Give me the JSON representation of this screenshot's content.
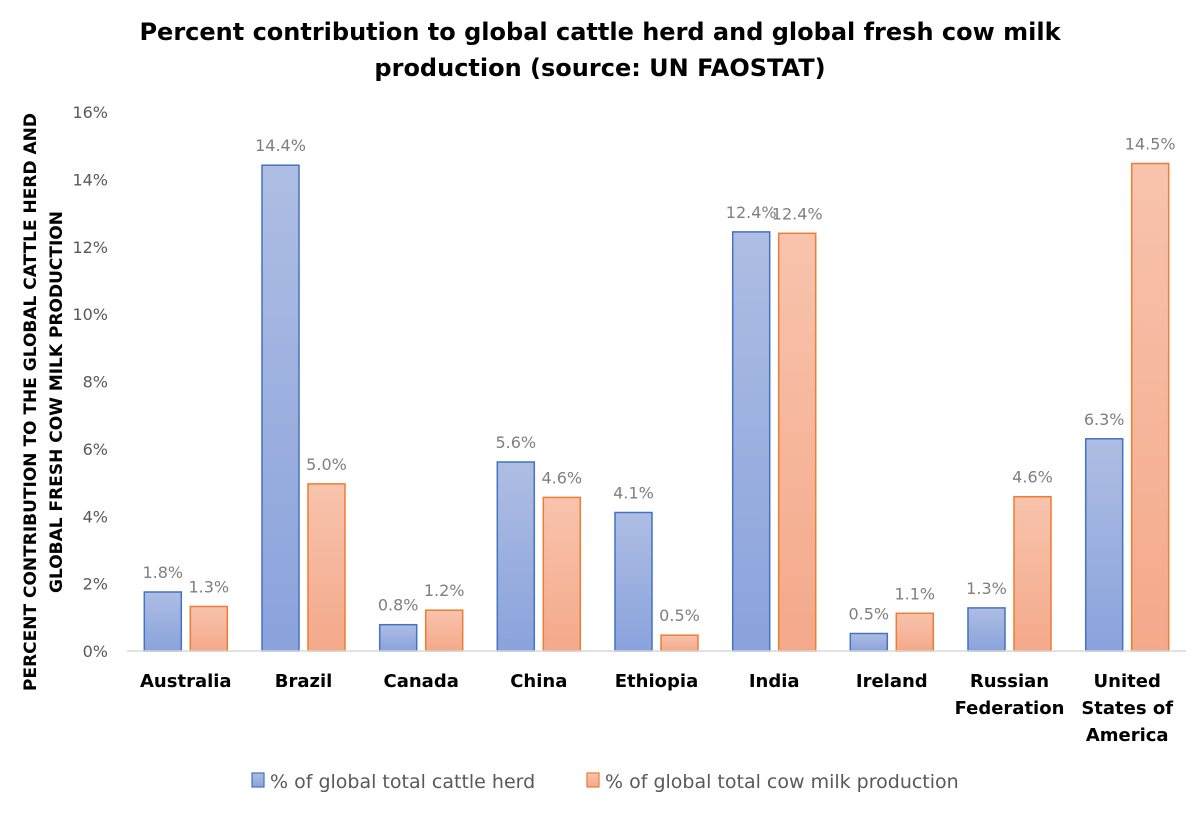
{
  "chart_data": {
    "type": "bar",
    "title_lines": [
      "Percent contribution to global cattle herd and global fresh cow milk",
      "production (source: UN FAOSTAT)"
    ],
    "ylabel_lines": [
      "PERCENT CONTRIBUTION TO THE GLOBAL CATTLE HERD AND",
      "GLOBAL FRESH COW MILK PRODUCTION"
    ],
    "xlabel": "",
    "ylim": [
      0,
      16
    ],
    "yticks": [
      0,
      2,
      4,
      6,
      8,
      10,
      12,
      14,
      16
    ],
    "ytick_suffix": "%",
    "grid": false,
    "legend_position": "bottom",
    "categories": [
      [
        "Australia"
      ],
      [
        "Brazil"
      ],
      [
        "Canada"
      ],
      [
        "China"
      ],
      [
        "Ethiopia"
      ],
      [
        "India"
      ],
      [
        "Ireland"
      ],
      [
        "Russian",
        "Federation"
      ],
      [
        "United",
        "States of",
        "America"
      ]
    ],
    "series": [
      {
        "name": "% of global total cattle herd",
        "color": "#4472c4",
        "fill_top": "#aebde3",
        "fill_bottom": "#8aa3dc",
        "values": [
          1.75,
          14.42,
          0.78,
          5.61,
          4.11,
          12.44,
          0.52,
          1.28,
          6.3
        ],
        "labels": [
          "1.8%",
          "14.4%",
          "0.8%",
          "5.6%",
          "4.1%",
          "12.4%",
          "0.5%",
          "1.3%",
          "6.3%"
        ]
      },
      {
        "name": "% of global total cow milk production",
        "color": "#ed7d31",
        "fill_top": "#f8c3ad",
        "fill_bottom": "#f4a98a",
        "values": [
          1.32,
          4.96,
          1.21,
          4.56,
          0.47,
          12.4,
          1.12,
          4.58,
          14.47
        ],
        "labels": [
          "1.3%",
          "5.0%",
          "1.2%",
          "4.6%",
          "0.5%",
          "12.4%",
          "1.1%",
          "4.6%",
          "14.5%"
        ]
      }
    ],
    "axis_line_color": "#d9d9d9"
  }
}
